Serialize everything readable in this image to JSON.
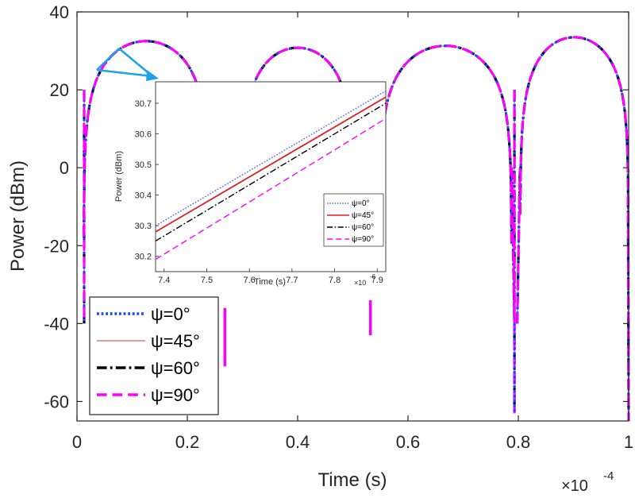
{
  "chart_data": [
    {
      "name": "main",
      "type": "line",
      "xlabel": "Time (s)",
      "ylabel": "Power (dBm)",
      "xlim": [
        0,
        1
      ],
      "ylim": [
        -65,
        40
      ],
      "x_multiplier_text": "×10",
      "x_multiplier_exp": "-4",
      "xticks": [
        0,
        0.2,
        0.4,
        0.6,
        0.8,
        1
      ],
      "xtick_labels": [
        "0",
        "0.2",
        "0.4",
        "0.6",
        "0.8",
        "1"
      ],
      "yticks": [
        40,
        20,
        0,
        -20,
        -40,
        -60
      ],
      "ytick_labels": [
        "40",
        "20",
        "0",
        "-20",
        "-40",
        "-60"
      ],
      "legend_position": "bottom-left",
      "arches": [
        {
          "start": 0.012,
          "end": 0.238,
          "peak_x": 0.12,
          "peak": 32.5
        },
        {
          "start": 0.298,
          "end": 0.502,
          "peak_x": 0.4,
          "peak": 30.8
        },
        {
          "start": 0.548,
          "end": 0.788,
          "peak_x": 0.667,
          "peak": 31.3
        },
        {
          "start": 0.803,
          "end": 1.0,
          "peak_x": 0.92,
          "peak": 33.5
        }
      ],
      "start_value": 23,
      "end_value": 23,
      "dips": [
        {
          "x": 0.013,
          "min": -40
        },
        {
          "x": 0.793,
          "min": -63
        }
      ],
      "fragments": [
        {
          "x": 0.268,
          "from": -51,
          "to": -36
        },
        {
          "x": 0.532,
          "from": -43,
          "to": -34
        }
      ],
      "series": [
        {
          "name": "ψ=0°",
          "color": "#1f3fff",
          "style": "dotted"
        },
        {
          "name": "ψ=45°",
          "color": "#d9a0a0",
          "style": "solid"
        },
        {
          "name": "ψ=60°",
          "color": "#000000",
          "style": "dashdot"
        },
        {
          "name": "ψ=90°",
          "color": "#ff00ff",
          "style": "dashed"
        }
      ]
    },
    {
      "name": "inset",
      "type": "line",
      "xlabel": "Time (s)",
      "ylabel": "Power (dBm)",
      "xlim": [
        7.38,
        7.92
      ],
      "ylim": [
        30.15,
        30.77
      ],
      "x_multiplier_text": "×10",
      "x_multiplier_exp": "-6",
      "xticks": [
        7.4,
        7.5,
        7.6,
        7.7,
        7.8,
        7.9
      ],
      "xtick_labels": [
        "7.4",
        "7.5",
        "7.6",
        "7.7",
        "7.8",
        "7.9"
      ],
      "yticks": [
        30.7,
        30.6,
        30.5,
        30.4,
        30.3,
        30.2
      ],
      "ytick_labels": [
        "30.7",
        "30.6",
        "30.5",
        "30.4",
        "30.3",
        "30.2"
      ],
      "legend_position": "bottom-right",
      "series": [
        {
          "name": "ψ=0°",
          "color": "#5a6bff",
          "style": "dotted",
          "x": [
            7.38,
            7.92
          ],
          "y": [
            30.3,
            30.74
          ]
        },
        {
          "name": "ψ=45°",
          "color": "#e02020",
          "style": "solid",
          "x": [
            7.38,
            7.92
          ],
          "y": [
            30.28,
            30.72
          ]
        },
        {
          "name": "ψ=60°",
          "color": "#000000",
          "style": "dashdot",
          "x": [
            7.38,
            7.92
          ],
          "y": [
            30.25,
            30.7
          ]
        },
        {
          "name": "ψ=90°",
          "color": "#ff00ff",
          "style": "dashed",
          "x": [
            7.38,
            7.92
          ],
          "y": [
            30.19,
            30.65
          ]
        }
      ]
    }
  ],
  "annotation": {
    "arrow_color": "#1aa3e8"
  }
}
